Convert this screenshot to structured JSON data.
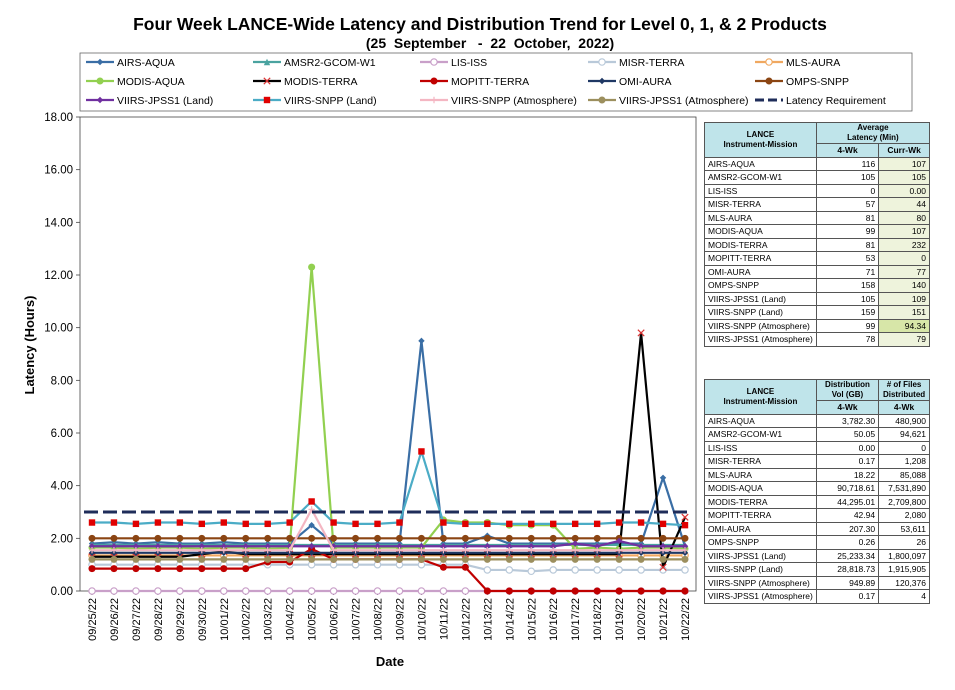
{
  "chart_data": {
    "type": "line",
    "title": "Four Week LANCE-Wide Latency and Distribution Trend for Level 0, 1, & 2 Products",
    "subtitle": "(25  September   -  22  October,  2022)",
    "xlabel": "Date",
    "ylabel": "Latency (Hours)",
    "ylim": [
      0,
      18
    ],
    "yticks": [
      "0.00",
      "2.00",
      "4.00",
      "6.00",
      "8.00",
      "10.00",
      "12.00",
      "14.00",
      "16.00",
      "18.00"
    ],
    "grid": false,
    "legend_position": "top",
    "categories": [
      "09/25/22",
      "09/26/22",
      "09/27/22",
      "09/28/22",
      "09/29/22",
      "09/30/22",
      "10/01/22",
      "10/02/22",
      "10/03/22",
      "10/04/22",
      "10/05/22",
      "10/06/22",
      "10/07/22",
      "10/08/22",
      "10/09/22",
      "10/10/22",
      "10/11/22",
      "10/12/22",
      "10/13/22",
      "10/14/22",
      "10/15/22",
      "10/16/22",
      "10/17/22",
      "10/18/22",
      "10/19/22",
      "10/20/22",
      "10/21/22",
      "10/22/22"
    ],
    "series": [
      {
        "name": "AIRS-AQUA",
        "color": "#3a6ea5",
        "marker": "diamond",
        "values": [
          1.8,
          1.85,
          1.8,
          1.85,
          1.8,
          1.8,
          1.85,
          1.8,
          1.8,
          1.8,
          2.5,
          1.8,
          1.8,
          1.8,
          1.8,
          9.5,
          1.8,
          1.8,
          2.1,
          1.8,
          1.8,
          1.8,
          1.8,
          1.8,
          1.8,
          1.8,
          4.3,
          1.7
        ]
      },
      {
        "name": "AMSR2-GCOM-W1",
        "color": "#4aa3a0",
        "marker": "triangle",
        "values": [
          1.75,
          1.75,
          1.75,
          1.75,
          1.75,
          1.75,
          1.75,
          1.75,
          1.75,
          1.75,
          1.75,
          1.75,
          1.75,
          1.75,
          1.75,
          1.75,
          1.75,
          1.75,
          1.75,
          1.75,
          1.75,
          1.75,
          1.75,
          1.75,
          1.75,
          1.75,
          1.75,
          1.75
        ]
      },
      {
        "name": "LIS-ISS",
        "color": "#c9a0c9",
        "marker": "circle-open",
        "values": [
          0,
          0,
          0,
          0,
          0,
          0,
          0,
          0,
          0,
          0,
          0,
          0,
          0,
          0,
          0,
          0,
          0,
          0,
          0,
          0,
          0,
          0,
          0,
          0,
          0,
          0,
          0,
          0
        ]
      },
      {
        "name": "MISR-TERRA",
        "color": "#b9c9d9",
        "marker": "circle-open",
        "values": [
          1.0,
          1.0,
          1.0,
          1.0,
          1.0,
          1.0,
          1.0,
          1.0,
          1.0,
          1.0,
          1.0,
          1.0,
          1.0,
          1.0,
          1.0,
          1.0,
          1.0,
          1.0,
          0.8,
          0.8,
          0.75,
          0.8,
          0.8,
          0.8,
          0.8,
          0.8,
          0.8,
          0.8
        ]
      },
      {
        "name": "MLS-AURA",
        "color": "#f0a860",
        "marker": "circle-open",
        "values": [
          1.35,
          1.35,
          1.35,
          1.35,
          1.35,
          1.35,
          1.35,
          1.35,
          1.35,
          1.35,
          1.35,
          1.35,
          1.35,
          1.35,
          1.35,
          1.35,
          1.35,
          1.35,
          1.35,
          1.35,
          1.35,
          1.35,
          1.35,
          1.35,
          1.35,
          1.35,
          1.35,
          1.35
        ]
      },
      {
        "name": "MODIS-AQUA",
        "color": "#92d050",
        "marker": "circle",
        "values": [
          1.65,
          1.65,
          1.6,
          1.65,
          1.65,
          1.6,
          1.65,
          1.65,
          1.6,
          1.65,
          12.3,
          1.65,
          1.65,
          1.65,
          1.65,
          1.65,
          2.7,
          2.6,
          2.6,
          2.5,
          2.5,
          2.5,
          1.6,
          1.65,
          1.6,
          1.65,
          1.65,
          1.6
        ]
      },
      {
        "name": "MODIS-TERRA",
        "color": "#000000",
        "marker": "x",
        "values": [
          1.3,
          1.3,
          1.3,
          1.3,
          1.3,
          1.4,
          1.5,
          1.4,
          1.4,
          1.4,
          1.4,
          1.4,
          1.4,
          1.4,
          1.4,
          1.4,
          1.4,
          1.4,
          1.4,
          1.4,
          1.4,
          1.4,
          1.4,
          1.4,
          1.4,
          9.8,
          0.9,
          2.8
        ]
      },
      {
        "name": "MOPITT-TERRA",
        "color": "#c00000",
        "marker": "circle",
        "values": [
          0.85,
          0.85,
          0.85,
          0.85,
          0.85,
          0.85,
          0.85,
          0.85,
          1.1,
          1.1,
          1.6,
          1.2,
          1.2,
          1.2,
          1.2,
          1.2,
          0.9,
          0.9,
          0,
          0,
          0,
          0,
          0,
          0,
          0,
          0,
          0,
          0
        ]
      },
      {
        "name": "OMI-AURA",
        "color": "#1f3864",
        "marker": "diamond",
        "values": [
          1.45,
          1.45,
          1.45,
          1.45,
          1.45,
          1.45,
          1.45,
          1.45,
          1.45,
          1.45,
          1.45,
          1.45,
          1.45,
          1.45,
          1.45,
          1.45,
          1.45,
          1.45,
          1.45,
          1.45,
          1.45,
          1.45,
          1.45,
          1.45,
          1.45,
          1.45,
          1.45,
          1.45
        ]
      },
      {
        "name": "OMPS-SNPP",
        "color": "#8b4513",
        "marker": "circle",
        "values": [
          2.0,
          2.0,
          2.0,
          2.0,
          2.0,
          2.0,
          2.0,
          2.0,
          2.0,
          2.0,
          2.0,
          2.0,
          2.0,
          2.0,
          2.0,
          2.0,
          2.0,
          2.0,
          2.0,
          2.0,
          2.0,
          2.0,
          2.0,
          2.0,
          2.0,
          2.0,
          2.0,
          2.0
        ]
      },
      {
        "name": "VIIRS-JPSS1 (Land)",
        "color": "#7030a0",
        "marker": "diamond",
        "values": [
          1.7,
          1.7,
          1.7,
          1.7,
          1.7,
          1.7,
          1.7,
          1.7,
          1.7,
          1.7,
          1.7,
          1.7,
          1.7,
          1.7,
          1.7,
          1.7,
          1.7,
          1.7,
          1.7,
          1.7,
          1.7,
          1.7,
          1.8,
          1.7,
          1.9,
          1.7,
          1.7,
          1.7
        ]
      },
      {
        "name": "VIIRS-SNPP (Land)",
        "color": "#4bacc6",
        "marker": "square",
        "values": [
          2.6,
          2.6,
          2.55,
          2.6,
          2.6,
          2.55,
          2.6,
          2.55,
          2.55,
          2.6,
          3.4,
          2.6,
          2.55,
          2.55,
          2.6,
          5.3,
          2.6,
          2.55,
          2.55,
          2.55,
          2.55,
          2.55,
          2.55,
          2.55,
          2.6,
          2.6,
          2.55,
          2.5
        ]
      },
      {
        "name": "VIIRS-SNPP (Atmosphere)",
        "color": "#f4b6c2",
        "marker": "cross",
        "values": [
          1.55,
          1.55,
          1.55,
          1.55,
          1.55,
          1.55,
          1.55,
          1.55,
          1.55,
          1.55,
          3.1,
          1.55,
          1.55,
          1.55,
          1.55,
          1.55,
          1.55,
          1.55,
          1.55,
          1.55,
          1.55,
          1.55,
          1.55,
          1.55,
          1.55,
          1.55,
          1.55,
          1.55
        ]
      },
      {
        "name": "VIIRS-JPSS1 (Atmosphere)",
        "color": "#9c8f5e",
        "marker": "circle",
        "values": [
          1.2,
          1.2,
          1.2,
          1.2,
          1.2,
          1.2,
          1.2,
          1.2,
          1.2,
          1.2,
          1.2,
          1.2,
          1.2,
          1.2,
          1.2,
          1.2,
          1.2,
          1.2,
          1.2,
          1.2,
          1.2,
          1.2,
          1.2,
          1.2,
          1.2,
          1.2,
          1.2,
          1.2
        ]
      },
      {
        "name": "Latency Requirement",
        "color": "#1f2d5a",
        "marker": "dash",
        "values": [
          3,
          3,
          3,
          3,
          3,
          3,
          3,
          3,
          3,
          3,
          3,
          3,
          3,
          3,
          3,
          3,
          3,
          3,
          3,
          3,
          3,
          3,
          3,
          3,
          3,
          3,
          3,
          3
        ]
      }
    ]
  },
  "latency_table": {
    "header_col1": "LANCE\nInstrument-Mission",
    "header_group": "Average\nLatency (Min)",
    "sub1": "4-Wk",
    "sub2": "Curr-Wk",
    "rows": [
      {
        "name": "AIRS-AQUA",
        "wk4": "116",
        "curr": "107"
      },
      {
        "name": "AMSR2-GCOM-W1",
        "wk4": "105",
        "curr": "105"
      },
      {
        "name": "LIS-ISS",
        "wk4": "0",
        "curr": "0.00"
      },
      {
        "name": "MISR-TERRA",
        "wk4": "57",
        "curr": "44"
      },
      {
        "name": "MLS-AURA",
        "wk4": "81",
        "curr": "80"
      },
      {
        "name": "MODIS-AQUA",
        "wk4": "99",
        "curr": "107"
      },
      {
        "name": "MODIS-TERRA",
        "wk4": "81",
        "curr": "232"
      },
      {
        "name": "MOPITT-TERRA",
        "wk4": "53",
        "curr": "0"
      },
      {
        "name": "OMI-AURA",
        "wk4": "71",
        "curr": "77"
      },
      {
        "name": "OMPS-SNPP",
        "wk4": "158",
        "curr": "140"
      },
      {
        "name": "VIIRS-JPSS1 (Land)",
        "wk4": "105",
        "curr": "109"
      },
      {
        "name": "VIIRS-SNPP (Land)",
        "wk4": "159",
        "curr": "151"
      },
      {
        "name": "VIIRS-SNPP (Atmosphere)",
        "wk4": "99",
        "curr": "94.34"
      },
      {
        "name": "VIIRS-JPSS1 (Atmosphere)",
        "wk4": "78",
        "curr": "79"
      }
    ]
  },
  "distribution_table": {
    "header_col1": "LANCE\nInstrument-Mission",
    "header_col2": "Distribution\nVol (GB)",
    "header_col3": "# of Files\nDistributed",
    "sub1": "4-Wk",
    "sub2": "4-Wk",
    "rows": [
      {
        "name": "AIRS-AQUA",
        "vol": "3,782.30",
        "files": "480,900"
      },
      {
        "name": "AMSR2-GCOM-W1",
        "vol": "50.05",
        "files": "94,621"
      },
      {
        "name": "LIS-ISS",
        "vol": "0.00",
        "files": "0"
      },
      {
        "name": "MISR-TERRA",
        "vol": "0.17",
        "files": "1,208"
      },
      {
        "name": "MLS-AURA",
        "vol": "18.22",
        "files": "85,088"
      },
      {
        "name": "MODIS-AQUA",
        "vol": "90,718.61",
        "files": "7,531,890"
      },
      {
        "name": "MODIS-TERRA",
        "vol": "44,295.01",
        "files": "2,709,800"
      },
      {
        "name": "MOPITT-TERRA",
        "vol": "42.94",
        "files": "2,080"
      },
      {
        "name": "OMI-AURA",
        "vol": "207.30",
        "files": "53,611"
      },
      {
        "name": "OMPS-SNPP",
        "vol": "0.26",
        "files": "26"
      },
      {
        "name": "VIIRS-JPSS1 (Land)",
        "vol": "25,233.34",
        "files": "1,800,097"
      },
      {
        "name": "VIIRS-SNPP (Land)",
        "vol": "28,818.73",
        "files": "1,915,905"
      },
      {
        "name": "VIIRS-SNPP (Atmosphere)",
        "vol": "949.89",
        "files": "120,376"
      },
      {
        "name": "VIIRS-JPSS1 (Atmosphere)",
        "vol": "0.17",
        "files": "4"
      }
    ]
  }
}
